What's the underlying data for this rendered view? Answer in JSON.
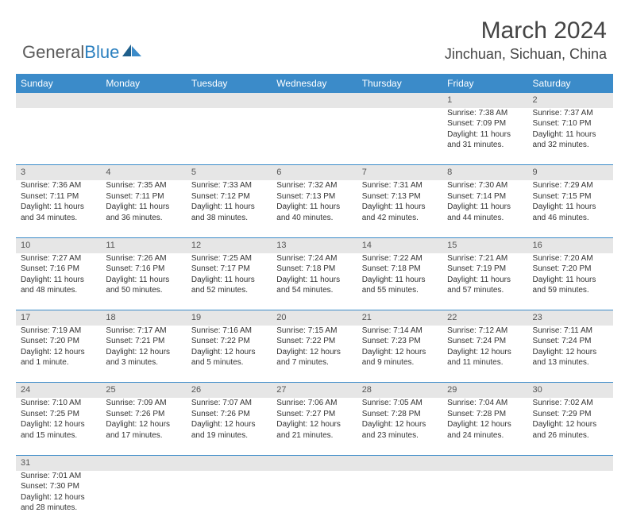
{
  "logo": {
    "text1": "General",
    "text2": "Blue"
  },
  "title": "March 2024",
  "location": "Jinchuan, Sichuan, China",
  "colors": {
    "header_bg": "#3b8bc9",
    "header_text": "#ffffff",
    "daynum_bg": "#e6e6e6",
    "border": "#3b8bc9",
    "logo_blue": "#2a7fbf"
  },
  "weekdays": [
    "Sunday",
    "Monday",
    "Tuesday",
    "Wednesday",
    "Thursday",
    "Friday",
    "Saturday"
  ],
  "weeks": [
    [
      null,
      null,
      null,
      null,
      null,
      {
        "n": "1",
        "sr": "Sunrise: 7:38 AM",
        "ss": "Sunset: 7:09 PM",
        "d1": "Daylight: 11 hours",
        "d2": "and 31 minutes."
      },
      {
        "n": "2",
        "sr": "Sunrise: 7:37 AM",
        "ss": "Sunset: 7:10 PM",
        "d1": "Daylight: 11 hours",
        "d2": "and 32 minutes."
      }
    ],
    [
      {
        "n": "3",
        "sr": "Sunrise: 7:36 AM",
        "ss": "Sunset: 7:11 PM",
        "d1": "Daylight: 11 hours",
        "d2": "and 34 minutes."
      },
      {
        "n": "4",
        "sr": "Sunrise: 7:35 AM",
        "ss": "Sunset: 7:11 PM",
        "d1": "Daylight: 11 hours",
        "d2": "and 36 minutes."
      },
      {
        "n": "5",
        "sr": "Sunrise: 7:33 AM",
        "ss": "Sunset: 7:12 PM",
        "d1": "Daylight: 11 hours",
        "d2": "and 38 minutes."
      },
      {
        "n": "6",
        "sr": "Sunrise: 7:32 AM",
        "ss": "Sunset: 7:13 PM",
        "d1": "Daylight: 11 hours",
        "d2": "and 40 minutes."
      },
      {
        "n": "7",
        "sr": "Sunrise: 7:31 AM",
        "ss": "Sunset: 7:13 PM",
        "d1": "Daylight: 11 hours",
        "d2": "and 42 minutes."
      },
      {
        "n": "8",
        "sr": "Sunrise: 7:30 AM",
        "ss": "Sunset: 7:14 PM",
        "d1": "Daylight: 11 hours",
        "d2": "and 44 minutes."
      },
      {
        "n": "9",
        "sr": "Sunrise: 7:29 AM",
        "ss": "Sunset: 7:15 PM",
        "d1": "Daylight: 11 hours",
        "d2": "and 46 minutes."
      }
    ],
    [
      {
        "n": "10",
        "sr": "Sunrise: 7:27 AM",
        "ss": "Sunset: 7:16 PM",
        "d1": "Daylight: 11 hours",
        "d2": "and 48 minutes."
      },
      {
        "n": "11",
        "sr": "Sunrise: 7:26 AM",
        "ss": "Sunset: 7:16 PM",
        "d1": "Daylight: 11 hours",
        "d2": "and 50 minutes."
      },
      {
        "n": "12",
        "sr": "Sunrise: 7:25 AM",
        "ss": "Sunset: 7:17 PM",
        "d1": "Daylight: 11 hours",
        "d2": "and 52 minutes."
      },
      {
        "n": "13",
        "sr": "Sunrise: 7:24 AM",
        "ss": "Sunset: 7:18 PM",
        "d1": "Daylight: 11 hours",
        "d2": "and 54 minutes."
      },
      {
        "n": "14",
        "sr": "Sunrise: 7:22 AM",
        "ss": "Sunset: 7:18 PM",
        "d1": "Daylight: 11 hours",
        "d2": "and 55 minutes."
      },
      {
        "n": "15",
        "sr": "Sunrise: 7:21 AM",
        "ss": "Sunset: 7:19 PM",
        "d1": "Daylight: 11 hours",
        "d2": "and 57 minutes."
      },
      {
        "n": "16",
        "sr": "Sunrise: 7:20 AM",
        "ss": "Sunset: 7:20 PM",
        "d1": "Daylight: 11 hours",
        "d2": "and 59 minutes."
      }
    ],
    [
      {
        "n": "17",
        "sr": "Sunrise: 7:19 AM",
        "ss": "Sunset: 7:20 PM",
        "d1": "Daylight: 12 hours",
        "d2": "and 1 minute."
      },
      {
        "n": "18",
        "sr": "Sunrise: 7:17 AM",
        "ss": "Sunset: 7:21 PM",
        "d1": "Daylight: 12 hours",
        "d2": "and 3 minutes."
      },
      {
        "n": "19",
        "sr": "Sunrise: 7:16 AM",
        "ss": "Sunset: 7:22 PM",
        "d1": "Daylight: 12 hours",
        "d2": "and 5 minutes."
      },
      {
        "n": "20",
        "sr": "Sunrise: 7:15 AM",
        "ss": "Sunset: 7:22 PM",
        "d1": "Daylight: 12 hours",
        "d2": "and 7 minutes."
      },
      {
        "n": "21",
        "sr": "Sunrise: 7:14 AM",
        "ss": "Sunset: 7:23 PM",
        "d1": "Daylight: 12 hours",
        "d2": "and 9 minutes."
      },
      {
        "n": "22",
        "sr": "Sunrise: 7:12 AM",
        "ss": "Sunset: 7:24 PM",
        "d1": "Daylight: 12 hours",
        "d2": "and 11 minutes."
      },
      {
        "n": "23",
        "sr": "Sunrise: 7:11 AM",
        "ss": "Sunset: 7:24 PM",
        "d1": "Daylight: 12 hours",
        "d2": "and 13 minutes."
      }
    ],
    [
      {
        "n": "24",
        "sr": "Sunrise: 7:10 AM",
        "ss": "Sunset: 7:25 PM",
        "d1": "Daylight: 12 hours",
        "d2": "and 15 minutes."
      },
      {
        "n": "25",
        "sr": "Sunrise: 7:09 AM",
        "ss": "Sunset: 7:26 PM",
        "d1": "Daylight: 12 hours",
        "d2": "and 17 minutes."
      },
      {
        "n": "26",
        "sr": "Sunrise: 7:07 AM",
        "ss": "Sunset: 7:26 PM",
        "d1": "Daylight: 12 hours",
        "d2": "and 19 minutes."
      },
      {
        "n": "27",
        "sr": "Sunrise: 7:06 AM",
        "ss": "Sunset: 7:27 PM",
        "d1": "Daylight: 12 hours",
        "d2": "and 21 minutes."
      },
      {
        "n": "28",
        "sr": "Sunrise: 7:05 AM",
        "ss": "Sunset: 7:28 PM",
        "d1": "Daylight: 12 hours",
        "d2": "and 23 minutes."
      },
      {
        "n": "29",
        "sr": "Sunrise: 7:04 AM",
        "ss": "Sunset: 7:28 PM",
        "d1": "Daylight: 12 hours",
        "d2": "and 24 minutes."
      },
      {
        "n": "30",
        "sr": "Sunrise: 7:02 AM",
        "ss": "Sunset: 7:29 PM",
        "d1": "Daylight: 12 hours",
        "d2": "and 26 minutes."
      }
    ],
    [
      {
        "n": "31",
        "sr": "Sunrise: 7:01 AM",
        "ss": "Sunset: 7:30 PM",
        "d1": "Daylight: 12 hours",
        "d2": "and 28 minutes."
      },
      null,
      null,
      null,
      null,
      null,
      null
    ]
  ]
}
